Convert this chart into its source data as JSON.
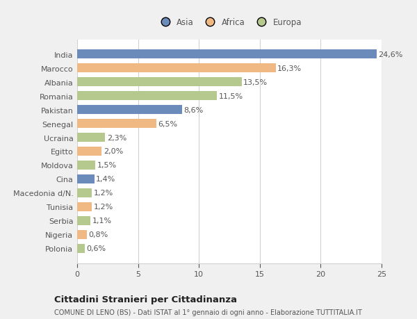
{
  "countries": [
    "India",
    "Marocco",
    "Albania",
    "Romania",
    "Pakistan",
    "Senegal",
    "Ucraina",
    "Egitto",
    "Moldova",
    "Cina",
    "Macedonia d/N.",
    "Tunisia",
    "Serbia",
    "Nigeria",
    "Polonia"
  ],
  "values": [
    24.6,
    16.3,
    13.5,
    11.5,
    8.6,
    6.5,
    2.3,
    2.0,
    1.5,
    1.4,
    1.2,
    1.2,
    1.1,
    0.8,
    0.6
  ],
  "labels": [
    "24,6%",
    "16,3%",
    "13,5%",
    "11,5%",
    "8,6%",
    "6,5%",
    "2,3%",
    "2,0%",
    "1,5%",
    "1,4%",
    "1,2%",
    "1,2%",
    "1,1%",
    "0,8%",
    "0,6%"
  ],
  "colors": [
    "#6b8cba",
    "#f0b983",
    "#b5c98e",
    "#b5c98e",
    "#6b8cba",
    "#f0b983",
    "#b5c98e",
    "#f0b983",
    "#b5c98e",
    "#6b8cba",
    "#b5c98e",
    "#f0b983",
    "#b5c98e",
    "#f0b983",
    "#b5c98e"
  ],
  "legend_labels": [
    "Asia",
    "Africa",
    "Europa"
  ],
  "legend_colors": [
    "#6b8cba",
    "#f0b983",
    "#b5c98e"
  ],
  "title": "Cittadini Stranieri per Cittadinanza",
  "subtitle": "COMUNE DI LENO (BS) - Dati ISTAT al 1° gennaio di ogni anno - Elaborazione TUTTITALIA.IT",
  "xlim": [
    0,
    25
  ],
  "xticks": [
    0,
    5,
    10,
    15,
    20,
    25
  ],
  "background_color": "#f0f0f0",
  "bar_background_color": "#ffffff",
  "grid_color": "#d0d0d0",
  "text_color": "#555555",
  "label_fontsize": 8.0,
  "tick_fontsize": 8.0,
  "bar_height": 0.65
}
